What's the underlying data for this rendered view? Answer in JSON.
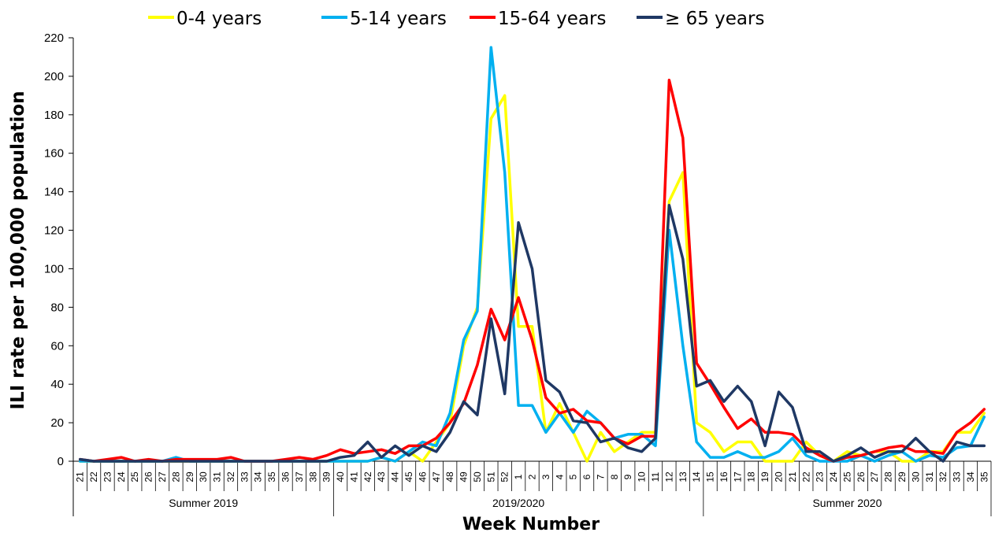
{
  "chart_data": {
    "type": "line",
    "xlabel": "Week Number",
    "ylabel": "ILI rate per 100,000 population",
    "ylim": [
      0,
      220
    ],
    "yticks": [
      0,
      20,
      40,
      60,
      80,
      100,
      120,
      140,
      160,
      180,
      200,
      220
    ],
    "grid": false,
    "legend_position": "top",
    "categories": [
      "21",
      "22",
      "23",
      "24",
      "25",
      "26",
      "27",
      "28",
      "29",
      "30",
      "31",
      "32",
      "33",
      "34",
      "35",
      "36",
      "37",
      "38",
      "39",
      "40",
      "41",
      "42",
      "43",
      "44",
      "45",
      "46",
      "47",
      "48",
      "49",
      "50",
      "51",
      "52",
      "1",
      "2",
      "3",
      "4",
      "5",
      "6",
      "7",
      "8",
      "9",
      "10",
      "11",
      "12",
      "13",
      "14",
      "15",
      "16",
      "17",
      "18",
      "19",
      "20",
      "21",
      "22",
      "23",
      "24",
      "25",
      "26",
      "27",
      "28",
      "29",
      "30",
      "31",
      "32",
      "33",
      "34",
      "35"
    ],
    "periods": [
      {
        "label": "Summer 2019",
        "start": 0,
        "end": 18
      },
      {
        "label": "2019/2020",
        "start": 19,
        "end": 45
      },
      {
        "label": "Summer 2020",
        "start": 46,
        "end": 66
      }
    ],
    "series": [
      {
        "name": "0-4 years",
        "color": "#FFFF00",
        "values": [
          0,
          0,
          0,
          0,
          0,
          0,
          0,
          0,
          0,
          0,
          0,
          0,
          0,
          0,
          0,
          0,
          0,
          0,
          0,
          0,
          0,
          0,
          2,
          0,
          5,
          0,
          10,
          20,
          60,
          80,
          178,
          190,
          70,
          70,
          15,
          30,
          15,
          0,
          15,
          5,
          10,
          15,
          15,
          135,
          150,
          20,
          15,
          5,
          10,
          10,
          0,
          0,
          0,
          10,
          3,
          0,
          5,
          3,
          5,
          5,
          0,
          0,
          5,
          5,
          15,
          15,
          25
        ]
      },
      {
        "name": "5-14 years",
        "color": "#00B0F0",
        "values": [
          0,
          0,
          0,
          0,
          0,
          0,
          0,
          2,
          0,
          0,
          0,
          0,
          0,
          0,
          0,
          0,
          0,
          0,
          0,
          0,
          0,
          0,
          2,
          0,
          5,
          10,
          8,
          25,
          63,
          78,
          215,
          150,
          29,
          29,
          15,
          25,
          15,
          26,
          20,
          12,
          14,
          14,
          8,
          120,
          60,
          10,
          2,
          2,
          5,
          2,
          2,
          5,
          12,
          3,
          0,
          0,
          0,
          3,
          0,
          3,
          5,
          0,
          3,
          2,
          7,
          8,
          23
        ]
      },
      {
        "name": "15-64 years",
        "color": "#FF0000",
        "values": [
          1,
          0,
          1,
          2,
          0,
          1,
          0,
          1,
          1,
          1,
          1,
          2,
          0,
          0,
          0,
          1,
          2,
          1,
          3,
          6,
          4,
          5,
          6,
          4,
          8,
          8,
          12,
          20,
          30,
          50,
          79,
          63,
          85,
          63,
          33,
          25,
          27,
          21,
          20,
          12,
          9,
          13,
          13,
          198,
          168,
          51,
          40,
          28,
          17,
          22,
          15,
          15,
          14,
          7,
          3,
          0,
          2,
          3,
          5,
          7,
          8,
          5,
          5,
          4,
          15,
          20,
          27
        ]
      },
      {
        "name": "≥ 65 years",
        "color": "#1F3864",
        "values": [
          1,
          0,
          0,
          0,
          0,
          0,
          0,
          0,
          0,
          0,
          0,
          0,
          0,
          0,
          0,
          0,
          0,
          0,
          0,
          2,
          3,
          10,
          2,
          8,
          3,
          8,
          5,
          15,
          31,
          24,
          74,
          35,
          124,
          100,
          42,
          36,
          21,
          20,
          10,
          12,
          7,
          5,
          12,
          133,
          105,
          39,
          42,
          31,
          39,
          31,
          8,
          36,
          28,
          5,
          5,
          0,
          3,
          7,
          2,
          5,
          5,
          12,
          5,
          0,
          10,
          8,
          8
        ]
      }
    ]
  }
}
